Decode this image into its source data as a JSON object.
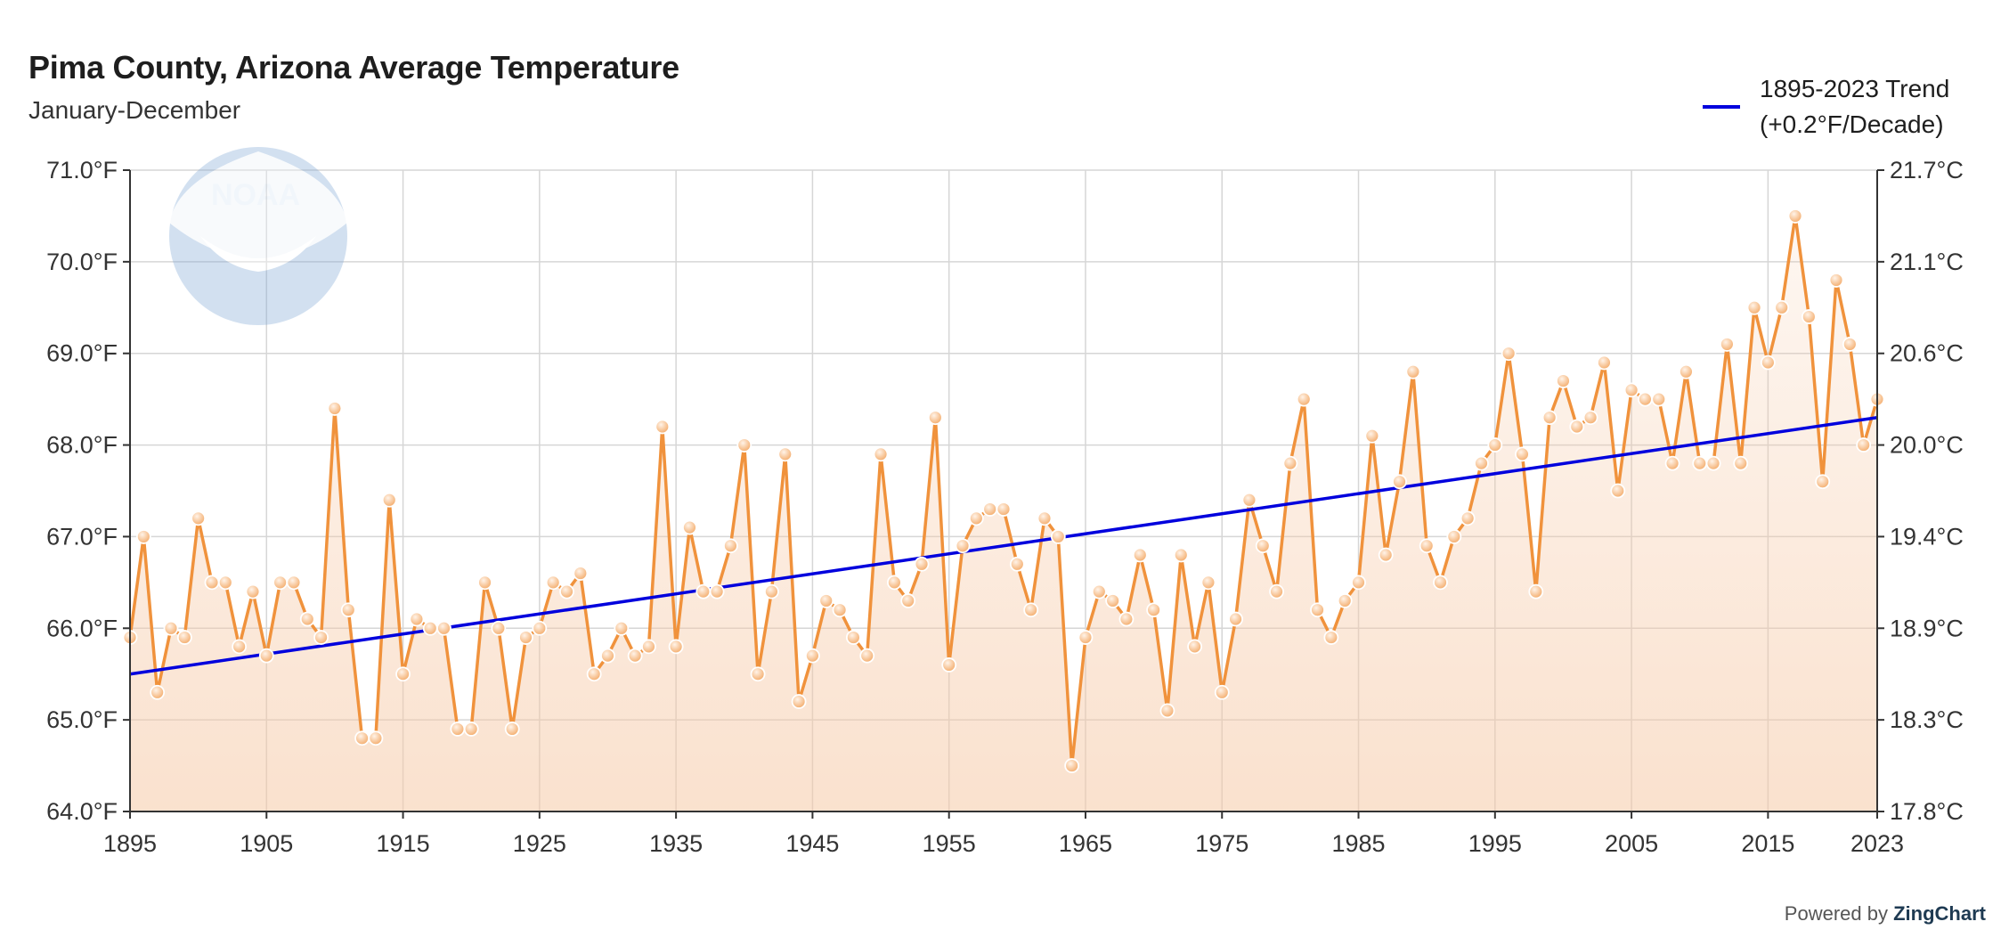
{
  "chart_data": {
    "type": "line",
    "title": "Pima County, Arizona Average Temperature",
    "subtitle": "January-December",
    "x": [
      1895,
      1896,
      1897,
      1898,
      1899,
      1900,
      1901,
      1902,
      1903,
      1904,
      1905,
      1906,
      1907,
      1908,
      1909,
      1910,
      1911,
      1912,
      1913,
      1914,
      1915,
      1916,
      1917,
      1918,
      1919,
      1920,
      1921,
      1922,
      1923,
      1924,
      1925,
      1926,
      1927,
      1928,
      1929,
      1930,
      1931,
      1932,
      1933,
      1934,
      1935,
      1936,
      1937,
      1938,
      1939,
      1940,
      1941,
      1942,
      1943,
      1944,
      1945,
      1946,
      1947,
      1948,
      1949,
      1950,
      1951,
      1952,
      1953,
      1954,
      1955,
      1956,
      1957,
      1958,
      1959,
      1960,
      1961,
      1962,
      1963,
      1964,
      1965,
      1966,
      1967,
      1968,
      1969,
      1970,
      1971,
      1972,
      1973,
      1974,
      1975,
      1976,
      1977,
      1978,
      1979,
      1980,
      1981,
      1982,
      1983,
      1984,
      1985,
      1986,
      1987,
      1988,
      1989,
      1990,
      1991,
      1992,
      1993,
      1994,
      1995,
      1996,
      1997,
      1998,
      1999,
      2000,
      2001,
      2002,
      2003,
      2004,
      2005,
      2006,
      2007,
      2008,
      2009,
      2010,
      2011,
      2012,
      2013,
      2014,
      2015,
      2016,
      2017,
      2018,
      2019,
      2020,
      2021,
      2022,
      2023
    ],
    "series": [
      {
        "values": [
          65.9,
          67.0,
          65.3,
          66.0,
          65.9,
          67.2,
          66.5,
          66.5,
          65.8,
          66.4,
          65.7,
          66.5,
          66.5,
          66.1,
          65.9,
          68.4,
          66.2,
          64.8,
          64.8,
          67.4,
          65.5,
          66.1,
          66.0,
          66.0,
          64.9,
          64.9,
          66.5,
          66.0,
          64.9,
          65.9,
          66.0,
          66.5,
          66.4,
          66.6,
          65.5,
          65.7,
          66.0,
          65.7,
          65.8,
          68.2,
          65.8,
          67.1,
          66.4,
          66.4,
          66.9,
          68.0,
          65.5,
          66.4,
          67.9,
          65.2,
          65.7,
          66.3,
          66.2,
          65.9,
          65.7,
          67.9,
          66.5,
          66.3,
          66.7,
          68.3,
          65.6,
          66.9,
          67.2,
          67.3,
          67.3,
          66.7,
          66.2,
          67.2,
          67.0,
          64.5,
          65.9,
          66.4,
          66.3,
          66.1,
          66.8,
          66.2,
          65.1,
          66.8,
          65.8,
          66.5,
          65.3,
          66.1,
          67.4,
          66.9,
          66.4,
          67.8,
          68.5,
          66.2,
          65.9,
          66.3,
          66.5,
          68.1,
          66.8,
          67.6,
          68.8,
          66.9,
          66.5,
          67.0,
          67.2,
          67.8,
          68.0,
          69.0,
          67.9,
          66.4,
          68.3,
          68.7,
          68.2,
          68.3,
          68.9,
          67.5,
          68.6,
          68.5,
          68.5,
          67.8,
          68.8,
          67.8,
          67.8,
          69.1,
          67.8,
          69.5,
          68.9,
          69.5,
          70.5,
          69.4,
          67.6,
          69.8,
          69.1,
          68.0,
          68.5
        ],
        "color": "#f0923c"
      },
      {
        "name": "1895-2023 Trend",
        "trend_start": 65.5,
        "trend_end": 68.3,
        "color": "#0000dd"
      }
    ],
    "legend_label_line1": "1895-2023 Trend",
    "legend_label_line2": "(+0.2°F/Decade)",
    "legend_position": "top-right",
    "ylim": [
      64.0,
      71.0
    ],
    "xlim": [
      1895,
      2023
    ],
    "y_ticks_left": [
      "64.0°F",
      "65.0°F",
      "66.0°F",
      "67.0°F",
      "68.0°F",
      "69.0°F",
      "70.0°F",
      "71.0°F"
    ],
    "y_ticks_right": [
      "17.8°C",
      "18.3°C",
      "18.9°C",
      "19.4°C",
      "20.0°C",
      "20.6°C",
      "21.1°C",
      "21.7°C"
    ],
    "x_tick_values": [
      1895,
      1905,
      1915,
      1925,
      1935,
      1945,
      1955,
      1965,
      1975,
      1985,
      1995,
      2005,
      2015,
      2023
    ],
    "grid": true
  },
  "logo": {
    "text": "NOAA"
  },
  "credit": {
    "prefix": "Powered by",
    "brand": "ZingChart"
  }
}
